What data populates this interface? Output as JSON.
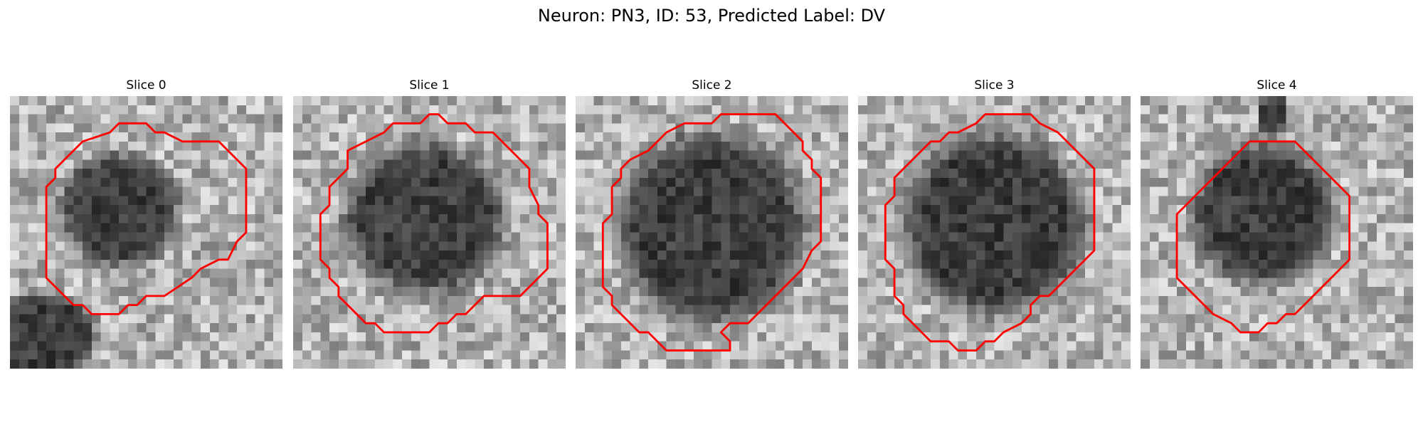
{
  "figure": {
    "title": "Neuron: PN3, ID: 53, Predicted Label: DV",
    "contour_color": "#ff0000",
    "panels": [
      {
        "label": "Slice 0",
        "icon": "grayscale-slice-image"
      },
      {
        "label": "Slice 1",
        "icon": "grayscale-slice-image"
      },
      {
        "label": "Slice 2",
        "icon": "grayscale-slice-image"
      },
      {
        "label": "Slice 3",
        "icon": "grayscale-slice-image"
      },
      {
        "label": "Slice 4",
        "icon": "grayscale-slice-image"
      }
    ]
  }
}
